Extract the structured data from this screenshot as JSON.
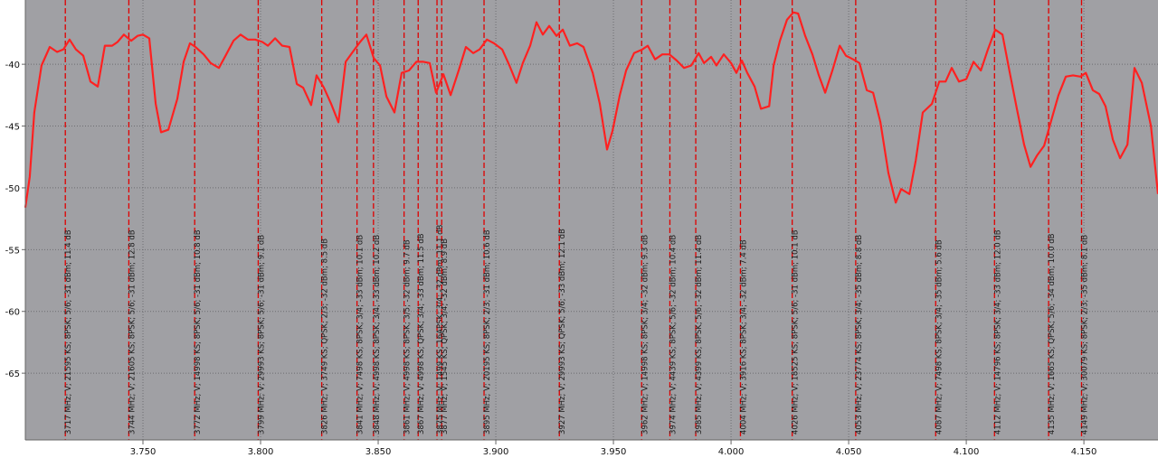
{
  "chart_data": {
    "type": "line",
    "xlim": [
      3.7,
      4.1815
    ],
    "ylim": [
      -70.4,
      -34.8
    ],
    "xticks": [
      {
        "value": 3.75,
        "label": "3.750"
      },
      {
        "value": 3.8,
        "label": "3.800"
      },
      {
        "value": 3.85,
        "label": "3.850"
      },
      {
        "value": 3.9,
        "label": "3.900"
      },
      {
        "value": 3.95,
        "label": "3.950"
      },
      {
        "value": 4.0,
        "label": "4.000"
      },
      {
        "value": 4.05,
        "label": "4.050"
      },
      {
        "value": 4.1,
        "label": "4.100"
      },
      {
        "value": 4.15,
        "label": "4.150"
      }
    ],
    "yticks": [
      -40,
      -45,
      -50,
      -55,
      -60,
      -65
    ],
    "grid": true,
    "x": [
      3.7,
      3.7019,
      3.7038,
      3.7069,
      3.7104,
      3.7135,
      3.7162,
      3.7188,
      3.7215,
      3.7246,
      3.7277,
      3.7308,
      3.7338,
      3.7369,
      3.7392,
      3.7419,
      3.745,
      3.7477,
      3.75,
      3.7527,
      3.7554,
      3.7577,
      3.7608,
      3.7646,
      3.7673,
      3.77,
      3.7723,
      3.7758,
      3.7788,
      3.7823,
      3.7854,
      3.7885,
      3.7915,
      3.7946,
      3.7977,
      3.8008,
      3.8031,
      3.8062,
      3.8092,
      3.8123,
      3.8154,
      3.8181,
      3.8215,
      3.8238,
      3.8269,
      3.83,
      3.8331,
      3.8362,
      3.8392,
      3.8423,
      3.845,
      3.8481,
      3.8508,
      3.8535,
      3.8569,
      3.86,
      3.8631,
      3.8662,
      3.8692,
      3.8719,
      3.8746,
      3.8777,
      3.8808,
      3.8842,
      3.8873,
      3.8904,
      3.8931,
      3.8962,
      3.8992,
      3.9027,
      3.9058,
      3.9088,
      3.9115,
      3.9146,
      3.9173,
      3.92,
      3.9227,
      3.9258,
      3.9285,
      3.9315,
      3.9346,
      3.9373,
      3.9412,
      3.9442,
      3.9473,
      3.9496,
      3.9527,
      3.9554,
      3.9588,
      3.9623,
      3.9646,
      3.9677,
      3.9708,
      3.9738,
      3.9769,
      3.98,
      3.9831,
      3.9862,
      3.9885,
      3.9915,
      3.9938,
      3.9969,
      4.0,
      4.0023,
      4.0046,
      4.0069,
      4.01,
      4.0127,
      4.0162,
      4.0181,
      4.0208,
      4.0238,
      4.0265,
      4.0285,
      4.0315,
      4.0346,
      4.0373,
      4.04,
      4.0431,
      4.0462,
      4.0488,
      4.0519,
      4.0546,
      4.0577,
      4.0604,
      4.0635,
      4.0669,
      4.07,
      4.0723,
      4.0758,
      4.0785,
      4.0815,
      4.0854,
      4.0885,
      4.0912,
      4.0938,
      4.0969,
      4.1,
      4.1031,
      4.1062,
      4.1092,
      4.1123,
      4.1154,
      4.1185,
      4.1215,
      4.1246,
      4.1273,
      4.13,
      4.1331,
      4.1362,
      4.1392,
      4.1423,
      4.1454,
      4.1485,
      4.1508,
      4.1538,
      4.1565,
      4.1592,
      4.1623,
      4.1654,
      4.1685,
      4.1715,
      4.1746,
      4.1785,
      4.1815
    ],
    "series": [
      {
        "color": "#ff2121",
        "values": [
          -51.6,
          -49.1,
          -43.9,
          -40.1,
          -38.6,
          -39.0,
          -38.8,
          -38.0,
          -38.8,
          -39.3,
          -41.4,
          -41.8,
          -38.5,
          -38.5,
          -38.2,
          -37.6,
          -38.1,
          -37.7,
          -37.6,
          -37.9,
          -43.2,
          -45.5,
          -45.3,
          -42.8,
          -39.8,
          -38.3,
          -38.6,
          -39.2,
          -39.9,
          -40.3,
          -39.2,
          -38.1,
          -37.6,
          -38.0,
          -38.0,
          -38.2,
          -38.5,
          -37.9,
          -38.5,
          -38.6,
          -41.6,
          -41.9,
          -43.3,
          -40.9,
          -41.9,
          -43.2,
          -44.7,
          -39.8,
          -39.0,
          -38.2,
          -37.6,
          -39.5,
          -40.1,
          -42.6,
          -43.9,
          -40.7,
          -40.5,
          -39.8,
          -39.8,
          -39.9,
          -42.3,
          -40.8,
          -42.5,
          -40.5,
          -38.6,
          -39.1,
          -38.8,
          -38.0,
          -38.3,
          -38.8,
          -40.1,
          -41.5,
          -39.9,
          -38.5,
          -36.6,
          -37.6,
          -36.9,
          -37.7,
          -37.2,
          -38.5,
          -38.3,
          -38.6,
          -40.7,
          -43.2,
          -46.9,
          -45.4,
          -42.5,
          -40.5,
          -39.1,
          -38.8,
          -38.5,
          -39.6,
          -39.2,
          -39.2,
          -39.7,
          -40.3,
          -40.1,
          -39.1,
          -39.9,
          -39.4,
          -40.1,
          -39.2,
          -39.9,
          -40.7,
          -39.7,
          -40.7,
          -41.8,
          -43.6,
          -43.4,
          -40.1,
          -38.1,
          -36.4,
          -35.8,
          -35.9,
          -37.7,
          -39.2,
          -40.9,
          -42.3,
          -40.5,
          -38.5,
          -39.3,
          -39.6,
          -39.9,
          -42.1,
          -42.3,
          -44.7,
          -48.8,
          -51.2,
          -50.1,
          -50.5,
          -47.8,
          -43.9,
          -43.2,
          -41.4,
          -41.4,
          -40.3,
          -41.4,
          -41.2,
          -39.8,
          -40.5,
          -38.8,
          -37.2,
          -37.6,
          -40.7,
          -43.6,
          -46.5,
          -48.3,
          -47.4,
          -46.6,
          -44.5,
          -42.5,
          -41.0,
          -40.9,
          -41.0,
          -40.7,
          -42.1,
          -42.4,
          -43.4,
          -46.1,
          -47.6,
          -46.5,
          -40.3,
          -41.5,
          -45.0,
          -50.5
        ]
      }
    ],
    "markers": [
      {
        "x": 3.717,
        "label": "3717 MHz; V; 21595 KS; 8PSK; 5/6; -31 dBm; 11.4 dB"
      },
      {
        "x": 3.744,
        "label": "3744 MHz; V; 21605 KS; 8PSK; 5/6; -31 dBm; 12.8 dB"
      },
      {
        "x": 3.772,
        "label": "3772 MHz; V; 14998 KS; 8PSK; 5/6; -31 dBm; 10.8 dB"
      },
      {
        "x": 3.799,
        "label": "3799 MHz; V; 29993 KS; 8PSK; 5/6; -31 dBm; 9.1 dB"
      },
      {
        "x": 3.826,
        "label": "3826 MHz; V; 3749 KS; QPSK; 2/3; -32 dBm; 8.5 dB"
      },
      {
        "x": 3.841,
        "label": "3841 MHz; V; 7498 KS; 8PSK; 3/4; -33 dBm; 10.1 dB"
      },
      {
        "x": 3.848,
        "label": "3848 MHz; V; 4998 KS; 8PSK; 3/4; -33 dBm; 10.2 dB"
      },
      {
        "x": 3.861,
        "label": "3861 MHz; V; 4998 KS; 8PSK; 3/5; -32 dBm; 9.7 dB"
      },
      {
        "x": 3.867,
        "label": "3867 MHz; V; 4998 KS; QPSK; 3/4; -33 dBm; 11.5 dB"
      },
      {
        "x": 3.875,
        "label": "3875 MHz; V; 1499 KS; 16APSK; 3/4; -32 dBm; 11.1 dB"
      },
      {
        "x": 3.877,
        "label": "3877 MHz; V; 1545 KS; QPSK; 3/4; -32 dBm; 8.9 dB"
      },
      {
        "x": 3.895,
        "label": "3895 MHz; V; 20195 KS; 8PSK; 2/3; -31 dBm; 10.6 dB"
      },
      {
        "x": 3.927,
        "label": "3927 MHz; V; 29993 KS; QPSK; 5/6; -33 dBm; 12.1 dB"
      },
      {
        "x": 3.962,
        "label": "3962 MHz; V; 14998 KS; 8PSK; 3/4; -32 dBm; 9.3 dB"
      },
      {
        "x": 3.974,
        "label": "3974 MHz; V; 4439 KS; 8PSK; 5/6; -32 dBm; 10.4 dB"
      },
      {
        "x": 3.985,
        "label": "3985 MHz; V; 4399 KS; 8PSK; 5/6; -32 dBm; 11.4 dB"
      },
      {
        "x": 4.004,
        "label": "4004 MHz; V; 3916 KS; 8PSK; 3/4; -32 dBm; 7.4 dB"
      },
      {
        "x": 4.026,
        "label": "4026 MHz; V; 18525 KS; 8PSK; 5/6; -31 dBm; 10.1 dB"
      },
      {
        "x": 4.053,
        "label": "4053 MHz; V; 23774 KS; 8PSK; 3/4; -35 dBm; 8.8 dB"
      },
      {
        "x": 4.087,
        "label": "4087 MHz; V; 7498 KS; 8PSK; 3/4; -35 dBm; 5.6 dB"
      },
      {
        "x": 4.112,
        "label": "4112 MHz; V; 14796 KS; 8PSK; 3/4; -33 dBm; 12.0 dB"
      },
      {
        "x": 4.135,
        "label": "4135 MHz; V; 1665 KS; QPSK; 5/6; -34 dBm; 10.0 dB"
      },
      {
        "x": 4.149,
        "label": "4149 MHz; V; 30079 KS; 8PSK; 2/3; -35 dBm; 8.1 dB"
      }
    ]
  }
}
